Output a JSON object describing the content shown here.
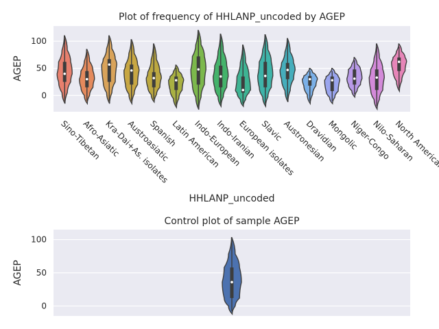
{
  "chart_data": [
    {
      "type": "violin",
      "title": "Plot of frequency of HHLANP_uncoded by AGEP",
      "xlabel": "HHLANP_uncoded",
      "ylabel": "AGEP",
      "ylim": [
        -30,
        128
      ],
      "yticks": [
        0,
        50,
        100
      ],
      "grid": true,
      "categories": [
        "Sino-Tibetan",
        "Afro-Asiatic",
        "Kra-Dai+As. isolates",
        "Austroasiatic",
        "Spanish",
        "Latin American",
        "Indo-European",
        "Indo-Iranian",
        "European isolates",
        "Slavic",
        "Austronesian",
        "Dravidian",
        "Mongolic",
        "Niger-Congo",
        "Nilo-Saharan",
        "North American"
      ],
      "colors": [
        "#e8806e",
        "#e48a5d",
        "#d9a35a",
        "#c8a743",
        "#bca840",
        "#a9b142",
        "#7cb84c",
        "#44b36b",
        "#3eb393",
        "#3fb4a9",
        "#46aebc",
        "#7bb0e8",
        "#9aa5ee",
        "#b99ae8",
        "#d38ad9",
        "#e685b8"
      ],
      "series": [
        {
          "name": "min",
          "values": [
            -15,
            -15,
            -15,
            -15,
            -12,
            -22,
            -26,
            -20,
            -20,
            -20,
            -12,
            -15,
            -15,
            -3,
            -25,
            8
          ]
        },
        {
          "name": "q1",
          "values": [
            25,
            15,
            25,
            20,
            15,
            10,
            20,
            15,
            5,
            15,
            30,
            18,
            8,
            20,
            10,
            45
          ]
        },
        {
          "name": "median",
          "values": [
            40,
            30,
            57,
            46,
            32,
            28,
            48,
            35,
            10,
            36,
            47,
            30,
            28,
            31,
            33,
            62
          ]
        },
        {
          "name": "q3",
          "values": [
            62,
            45,
            67,
            57,
            43,
            35,
            72,
            55,
            35,
            62,
            60,
            36,
            35,
            48,
            48,
            70
          ]
        },
        {
          "name": "max",
          "values": [
            110,
            85,
            110,
            103,
            95,
            56,
            120,
            113,
            93,
            112,
            105,
            50,
            50,
            70,
            95,
            95
          ]
        }
      ]
    },
    {
      "type": "violin",
      "title": "Control plot of sample AGEP",
      "xlabel": "",
      "ylabel": "AGEP",
      "ylim": [
        -15,
        115
      ],
      "yticks": [
        0,
        50,
        100
      ],
      "grid": true,
      "categories": [
        ""
      ],
      "colors": [
        "#4c72b0"
      ],
      "series": [
        {
          "name": "min",
          "values": [
            -12
          ]
        },
        {
          "name": "q1",
          "values": [
            12
          ]
        },
        {
          "name": "median",
          "values": [
            36
          ]
        },
        {
          "name": "q3",
          "values": [
            58
          ]
        },
        {
          "name": "max",
          "values": [
            103
          ]
        }
      ]
    }
  ]
}
